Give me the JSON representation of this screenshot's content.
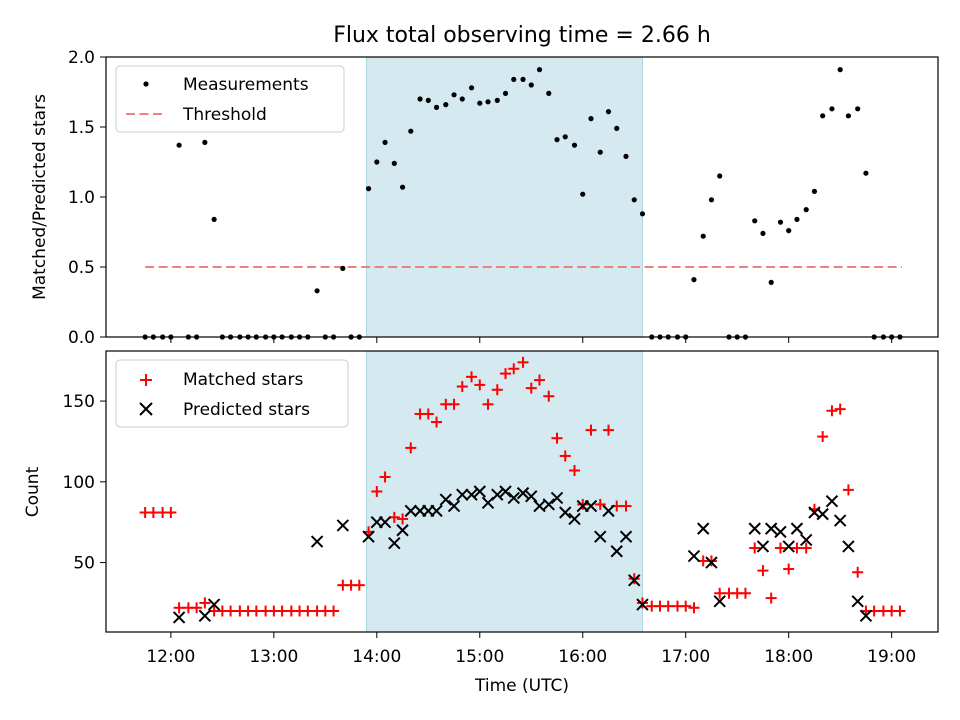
{
  "figure": {
    "title": "Flux total observing time = 2.66 h",
    "xlabel": "Time (UTC)",
    "x_ticks": [
      "12:00",
      "13:00",
      "14:00",
      "15:00",
      "16:00",
      "17:00",
      "18:00",
      "19:00"
    ]
  },
  "chart_data": [
    {
      "type": "scatter",
      "ylabel": "Matched/Predicted stars",
      "ylim": [
        0,
        2.0
      ],
      "y_ticks": [
        "0.0",
        "0.5",
        "1.0",
        "1.5",
        "2.0"
      ],
      "xlim_hours": [
        11.37,
        19.45
      ],
      "shaded_interval_hours": [
        13.9,
        16.58
      ],
      "shade_color": "#d4e9f0",
      "legend": {
        "placement": "top-left",
        "entries": [
          "Measurements",
          "Threshold"
        ]
      },
      "threshold": {
        "name": "Threshold",
        "value": 0.5,
        "x_range_hours": [
          11.75,
          19.1
        ],
        "color": "#f08080"
      },
      "series": [
        {
          "name": "Measurements",
          "color": "#000000",
          "points": [
            [
              11.75,
              0
            ],
            [
              11.83,
              0
            ],
            [
              11.92,
              0
            ],
            [
              12.0,
              0
            ],
            [
              12.08,
              1.37
            ],
            [
              12.17,
              0
            ],
            [
              12.25,
              0
            ],
            [
              12.33,
              1.39
            ],
            [
              12.42,
              0.84
            ],
            [
              12.5,
              0
            ],
            [
              12.58,
              0
            ],
            [
              12.67,
              0
            ],
            [
              12.75,
              0
            ],
            [
              12.83,
              0
            ],
            [
              12.92,
              0
            ],
            [
              13.0,
              0
            ],
            [
              13.08,
              0
            ],
            [
              13.17,
              0
            ],
            [
              13.25,
              0
            ],
            [
              13.33,
              0
            ],
            [
              13.42,
              0.33
            ],
            [
              13.5,
              0
            ],
            [
              13.58,
              0
            ],
            [
              13.67,
              0.49
            ],
            [
              13.75,
              0
            ],
            [
              13.83,
              0
            ],
            [
              13.92,
              1.06
            ],
            [
              14.0,
              1.25
            ],
            [
              14.08,
              1.39
            ],
            [
              14.17,
              1.24
            ],
            [
              14.25,
              1.07
            ],
            [
              14.33,
              1.47
            ],
            [
              14.42,
              1.7
            ],
            [
              14.5,
              1.69
            ],
            [
              14.58,
              1.64
            ],
            [
              14.67,
              1.66
            ],
            [
              14.75,
              1.73
            ],
            [
              14.83,
              1.7
            ],
            [
              14.92,
              1.78
            ],
            [
              15.0,
              1.67
            ],
            [
              15.08,
              1.68
            ],
            [
              15.17,
              1.69
            ],
            [
              15.25,
              1.74
            ],
            [
              15.33,
              1.84
            ],
            [
              15.42,
              1.84
            ],
            [
              15.5,
              1.8
            ],
            [
              15.58,
              1.91
            ],
            [
              15.67,
              1.74
            ],
            [
              15.75,
              1.41
            ],
            [
              15.83,
              1.43
            ],
            [
              15.92,
              1.37
            ],
            [
              16.0,
              1.02
            ],
            [
              16.08,
              1.56
            ],
            [
              16.17,
              1.32
            ],
            [
              16.25,
              1.61
            ],
            [
              16.33,
              1.49
            ],
            [
              16.42,
              1.29
            ],
            [
              16.5,
              0.98
            ],
            [
              16.58,
              0.88
            ],
            [
              16.67,
              0
            ],
            [
              16.75,
              0
            ],
            [
              16.83,
              0
            ],
            [
              16.92,
              0
            ],
            [
              17.0,
              0
            ],
            [
              17.08,
              0.41
            ],
            [
              17.17,
              0.72
            ],
            [
              17.25,
              0.98
            ],
            [
              17.33,
              1.15
            ],
            [
              17.42,
              0
            ],
            [
              17.5,
              0
            ],
            [
              17.58,
              0
            ],
            [
              17.67,
              0.83
            ],
            [
              17.75,
              0.74
            ],
            [
              17.83,
              0.39
            ],
            [
              17.92,
              0.82
            ],
            [
              18.0,
              0.76
            ],
            [
              18.08,
              0.84
            ],
            [
              18.17,
              0.91
            ],
            [
              18.25,
              1.04
            ],
            [
              18.33,
              1.58
            ],
            [
              18.42,
              1.63
            ],
            [
              18.5,
              1.91
            ],
            [
              18.58,
              1.58
            ],
            [
              18.67,
              1.63
            ],
            [
              18.75,
              1.17
            ],
            [
              18.83,
              0
            ],
            [
              18.92,
              0
            ],
            [
              19.0,
              0
            ],
            [
              19.08,
              0
            ]
          ]
        }
      ]
    },
    {
      "type": "scatter",
      "ylabel": "Count",
      "ylim": [
        7,
        181
      ],
      "y_ticks": [
        "50",
        "100",
        "150"
      ],
      "xlim_hours": [
        11.37,
        19.45
      ],
      "shaded_interval_hours": [
        13.9,
        16.58
      ],
      "shade_color": "#d4e9f0",
      "legend": {
        "placement": "top-left",
        "entries": [
          "Matched stars",
          "Predicted stars"
        ]
      },
      "series": [
        {
          "name": "Matched stars",
          "marker": "+",
          "color": "#ff0000",
          "points": [
            [
              11.75,
              81
            ],
            [
              11.83,
              81
            ],
            [
              11.92,
              81
            ],
            [
              12.0,
              81
            ],
            [
              12.08,
              22
            ],
            [
              12.17,
              22
            ],
            [
              12.25,
              22
            ],
            [
              12.33,
              25
            ],
            [
              12.42,
              20
            ],
            [
              12.5,
              20
            ],
            [
              12.58,
              20
            ],
            [
              12.67,
              20
            ],
            [
              12.75,
              20
            ],
            [
              12.83,
              20
            ],
            [
              12.92,
              20
            ],
            [
              13.0,
              20
            ],
            [
              13.08,
              20
            ],
            [
              13.17,
              20
            ],
            [
              13.25,
              20
            ],
            [
              13.33,
              20
            ],
            [
              13.42,
              20
            ],
            [
              13.5,
              20
            ],
            [
              13.58,
              20
            ],
            [
              13.67,
              36
            ],
            [
              13.75,
              36
            ],
            [
              13.83,
              36
            ],
            [
              13.92,
              69
            ],
            [
              14.0,
              94
            ],
            [
              14.08,
              103
            ],
            [
              14.17,
              78
            ],
            [
              14.25,
              77
            ],
            [
              14.33,
              121
            ],
            [
              14.42,
              142
            ],
            [
              14.5,
              142
            ],
            [
              14.58,
              137
            ],
            [
              14.67,
              148
            ],
            [
              14.75,
              148
            ],
            [
              14.83,
              159
            ],
            [
              14.92,
              165
            ],
            [
              15.0,
              160
            ],
            [
              15.08,
              148
            ],
            [
              15.17,
              157
            ],
            [
              15.25,
              167
            ],
            [
              15.33,
              170
            ],
            [
              15.42,
              174
            ],
            [
              15.5,
              158
            ],
            [
              15.58,
              163
            ],
            [
              15.67,
              153
            ],
            [
              15.75,
              127
            ],
            [
              15.83,
              116
            ],
            [
              15.92,
              107
            ],
            [
              16.0,
              86
            ],
            [
              16.08,
              132
            ],
            [
              16.17,
              86
            ],
            [
              16.25,
              132
            ],
            [
              16.33,
              85
            ],
            [
              16.42,
              85
            ],
            [
              16.5,
              40
            ],
            [
              16.58,
              25
            ],
            [
              16.67,
              23
            ],
            [
              16.75,
              23
            ],
            [
              16.83,
              23
            ],
            [
              16.92,
              23
            ],
            [
              17.0,
              23
            ],
            [
              17.08,
              22
            ],
            [
              17.17,
              51
            ],
            [
              17.25,
              51
            ],
            [
              17.33,
              31
            ],
            [
              17.42,
              31
            ],
            [
              17.5,
              31
            ],
            [
              17.58,
              31
            ],
            [
              17.67,
              59
            ],
            [
              17.75,
              45
            ],
            [
              17.83,
              28
            ],
            [
              17.92,
              59
            ],
            [
              18.0,
              46
            ],
            [
              18.08,
              59
            ],
            [
              18.17,
              59
            ],
            [
              18.25,
              83
            ],
            [
              18.33,
              128
            ],
            [
              18.42,
              144
            ],
            [
              18.5,
              145
            ],
            [
              18.58,
              95
            ],
            [
              18.67,
              44
            ],
            [
              18.75,
              20
            ],
            [
              18.83,
              20
            ],
            [
              18.92,
              20
            ],
            [
              19.0,
              20
            ],
            [
              19.08,
              20
            ]
          ]
        },
        {
          "name": "Predicted stars",
          "marker": "x",
          "color": "#000000",
          "points": [
            [
              12.08,
              16
            ],
            [
              12.33,
              17
            ],
            [
              12.42,
              24
            ],
            [
              13.42,
              63
            ],
            [
              13.67,
              73
            ],
            [
              13.92,
              66
            ],
            [
              14.0,
              75
            ],
            [
              14.08,
              75
            ],
            [
              14.17,
              62
            ],
            [
              14.25,
              70
            ],
            [
              14.33,
              82
            ],
            [
              14.42,
              82
            ],
            [
              14.5,
              82
            ],
            [
              14.58,
              82
            ],
            [
              14.67,
              89
            ],
            [
              14.75,
              85
            ],
            [
              14.83,
              92
            ],
            [
              14.92,
              92
            ],
            [
              15.0,
              94
            ],
            [
              15.08,
              87
            ],
            [
              15.17,
              92
            ],
            [
              15.25,
              94
            ],
            [
              15.33,
              90
            ],
            [
              15.42,
              93
            ],
            [
              15.5,
              91
            ],
            [
              15.58,
              85
            ],
            [
              15.67,
              86
            ],
            [
              15.75,
              90
            ],
            [
              15.83,
              81
            ],
            [
              15.92,
              77
            ],
            [
              16.0,
              85
            ],
            [
              16.08,
              85
            ],
            [
              16.17,
              66
            ],
            [
              16.25,
              82
            ],
            [
              16.33,
              57
            ],
            [
              16.42,
              66
            ],
            [
              16.5,
              39
            ],
            [
              16.58,
              24
            ],
            [
              17.08,
              54
            ],
            [
              17.17,
              71
            ],
            [
              17.25,
              50
            ],
            [
              17.33,
              26
            ],
            [
              17.67,
              71
            ],
            [
              17.75,
              60
            ],
            [
              17.83,
              71
            ],
            [
              17.92,
              69
            ],
            [
              18.0,
              60
            ],
            [
              18.08,
              71
            ],
            [
              18.17,
              64
            ],
            [
              18.25,
              81
            ],
            [
              18.33,
              80
            ],
            [
              18.42,
              88
            ],
            [
              18.5,
              76
            ],
            [
              18.58,
              60
            ],
            [
              18.67,
              26
            ],
            [
              18.75,
              17
            ]
          ]
        }
      ]
    }
  ]
}
